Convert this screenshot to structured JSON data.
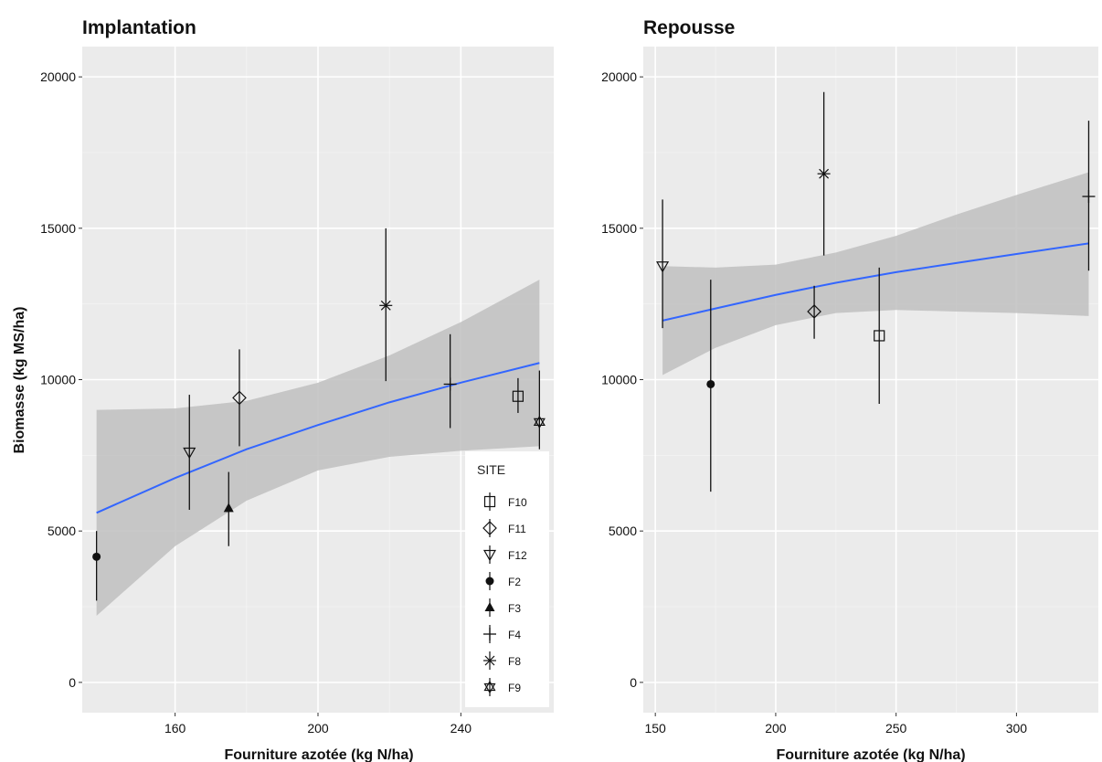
{
  "colors": {
    "panel_background": "#ebebeb",
    "grid_major": "#ffffff",
    "grid_minor": "#f4f4f4",
    "fit_line": "#3366ff",
    "ribbon": "#bfbfbf",
    "points": "#111111",
    "legend_background": "#ffffff"
  },
  "legend": {
    "title": "SITE",
    "placement": "inside-bottom-right-left-panel",
    "items": [
      {
        "label": "F10",
        "shape": "square-open-icon"
      },
      {
        "label": "F11",
        "shape": "diamond-open-icon"
      },
      {
        "label": "F12",
        "shape": "triangle-down-open-icon"
      },
      {
        "label": "F2",
        "shape": "circle-filled-icon"
      },
      {
        "label": "F3",
        "shape": "triangle-up-filled-icon"
      },
      {
        "label": "F4",
        "shape": "plus-icon"
      },
      {
        "label": "F8",
        "shape": "asterisk-icon"
      },
      {
        "label": "F9",
        "shape": "star-of-david-icon"
      }
    ]
  },
  "chart_data": [
    {
      "type": "scatter",
      "title": "Implantation",
      "xlabel": "Fourniture azotée (kg N/ha)",
      "ylabel": "Biomasse (kg MS/ha)",
      "xlim": [
        134,
        266
      ],
      "ylim": [
        -1000,
        21000
      ],
      "xticks": [
        160,
        200,
        240
      ],
      "yticks": [
        0,
        5000,
        10000,
        15000,
        20000
      ],
      "grid": true,
      "points": [
        {
          "site": "F2",
          "x": 138,
          "y": 4150,
          "ymin": 2700,
          "ymax": 5000
        },
        {
          "site": "F12",
          "x": 164,
          "y": 7600,
          "ymin": 5700,
          "ymax": 9500
        },
        {
          "site": "F3",
          "x": 175,
          "y": 5750,
          "ymin": 4500,
          "ymax": 6950
        },
        {
          "site": "F11",
          "x": 178,
          "y": 9400,
          "ymin": 7800,
          "ymax": 11000
        },
        {
          "site": "F8",
          "x": 219,
          "y": 12450,
          "ymin": 9950,
          "ymax": 15000
        },
        {
          "site": "F4",
          "x": 237,
          "y": 9850,
          "ymin": 8400,
          "ymax": 11500
        },
        {
          "site": "F10",
          "x": 256,
          "y": 9450,
          "ymin": 8900,
          "ymax": 10050
        },
        {
          "site": "F9",
          "x": 262,
          "y": 8600,
          "ymin": 7700,
          "ymax": 10300
        }
      ],
      "fit": {
        "x": [
          138,
          160,
          180,
          200,
          220,
          240,
          262
        ],
        "y": [
          5600,
          6750,
          7700,
          8500,
          9250,
          9900,
          10550
        ],
        "lower": [
          2200,
          4500,
          6000,
          7000,
          7450,
          7650,
          7800
        ],
        "upper": [
          9000,
          9050,
          9300,
          9900,
          10800,
          11900,
          13300
        ]
      }
    },
    {
      "type": "scatter",
      "title": "Repousse",
      "xlabel": "Fourniture azotée (kg N/ha)",
      "ylabel": "",
      "xlim": [
        145,
        334
      ],
      "ylim": [
        -1000,
        21000
      ],
      "xticks": [
        150,
        200,
        250,
        300
      ],
      "yticks": [
        0,
        5000,
        10000,
        15000,
        20000
      ],
      "grid": true,
      "points": [
        {
          "site": "F12",
          "x": 153,
          "y": 13750,
          "ymin": 11700,
          "ymax": 15950
        },
        {
          "site": "F2",
          "x": 173,
          "y": 9850,
          "ymin": 6300,
          "ymax": 13300
        },
        {
          "site": "F11",
          "x": 216,
          "y": 12250,
          "ymin": 11350,
          "ymax": 13100
        },
        {
          "site": "F8",
          "x": 220,
          "y": 16800,
          "ymin": 14100,
          "ymax": 19500
        },
        {
          "site": "F10",
          "x": 243,
          "y": 11450,
          "ymin": 9200,
          "ymax": 13700
        },
        {
          "site": "F4",
          "x": 330,
          "y": 16050,
          "ymin": 13600,
          "ymax": 18550
        }
      ],
      "fit": {
        "x": [
          153,
          175,
          200,
          225,
          250,
          275,
          300,
          330
        ],
        "y": [
          11950,
          12350,
          12800,
          13200,
          13550,
          13850,
          14150,
          14500
        ],
        "lower": [
          10150,
          11050,
          11800,
          12200,
          12300,
          12250,
          12200,
          12100
        ],
        "upper": [
          13750,
          13700,
          13800,
          14200,
          14750,
          15450,
          16100,
          16850
        ]
      }
    }
  ]
}
